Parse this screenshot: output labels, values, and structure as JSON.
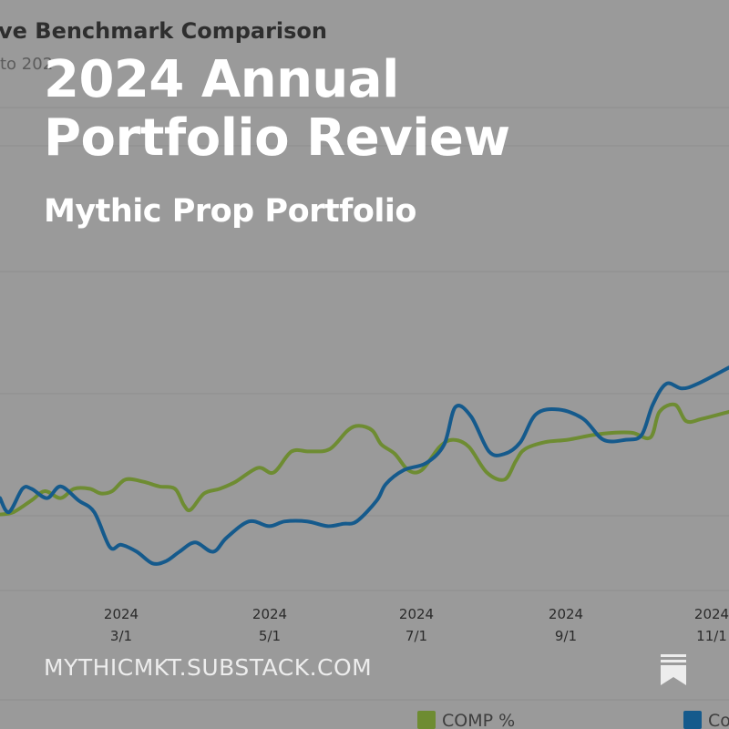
{
  "background_chart": {
    "title": "ve Benchmark Comparison",
    "subtitle": "to 202",
    "colors": {
      "comp": "#6e8c32",
      "benchmark": "#155a8c",
      "grid": "#8e8e8e",
      "tick_text": "#2b2b2b"
    },
    "legend": [
      {
        "label": "COMP %",
        "color": "#6e8c32"
      },
      {
        "label": "Co",
        "color": "#155a8c"
      }
    ]
  },
  "chart_data": {
    "type": "line",
    "title": "ve Benchmark Comparison",
    "subtitle": "to 202",
    "x_ticks": [
      {
        "year": "2024",
        "date": "3/1"
      },
      {
        "year": "2024",
        "date": "5/1"
      },
      {
        "year": "2024",
        "date": "7/1"
      },
      {
        "year": "2024",
        "date": "9/1"
      },
      {
        "year": "2024",
        "date": "11/1"
      }
    ],
    "xlim": [
      "2024-01-16",
      "2024-12-06"
    ],
    "ylim": [
      0,
      100
    ],
    "grid": true,
    "legend_position": "bottom",
    "series": [
      {
        "name": "COMP %",
        "color": "#6e8c32",
        "x": [
          "2024-01-16",
          "2024-01-22",
          "2024-01-30",
          "2024-02-05",
          "2024-02-12",
          "2024-02-18",
          "2024-02-25",
          "2024-03-01",
          "2024-03-06",
          "2024-03-12",
          "2024-03-20",
          "2024-03-27",
          "2024-04-03",
          "2024-04-07",
          "2024-04-10",
          "2024-04-16",
          "2024-04-23",
          "2024-04-30",
          "2024-05-10",
          "2024-05-17",
          "2024-05-25",
          "2024-06-02",
          "2024-06-11",
          "2024-06-19",
          "2024-06-24",
          "2024-06-30",
          "2024-07-04",
          "2024-07-10",
          "2024-07-16",
          "2024-07-22",
          "2024-07-30",
          "2024-08-05",
          "2024-08-12",
          "2024-08-20",
          "2024-08-28",
          "2024-09-02",
          "2024-09-06",
          "2024-09-15",
          "2024-09-25",
          "2024-10-06",
          "2024-10-15",
          "2024-10-24",
          "2024-11-01",
          "2024-11-05",
          "2024-11-12",
          "2024-11-17",
          "2024-11-24",
          "2024-12-06"
        ],
        "y": [
          24,
          25,
          30,
          34,
          31,
          35,
          35,
          33,
          34,
          39,
          38,
          36,
          35,
          28,
          26,
          33,
          35,
          38,
          44,
          42,
          51,
          51,
          52,
          60,
          62,
          60,
          54,
          50,
          43,
          43,
          53,
          56,
          53,
          42,
          39,
          47,
          52,
          55,
          56,
          58,
          59,
          59,
          57,
          68,
          71,
          64,
          65,
          68
        ]
      },
      {
        "name": "Co",
        "color": "#155a8c",
        "x": [
          "2024-01-16",
          "2024-01-20",
          "2024-01-26",
          "2024-01-30",
          "2024-02-06",
          "2024-02-12",
          "2024-02-20",
          "2024-02-27",
          "2024-03-05",
          "2024-03-10",
          "2024-03-17",
          "2024-03-24",
          "2024-03-30",
          "2024-04-05",
          "2024-04-12",
          "2024-04-20",
          "2024-04-26",
          "2024-05-06",
          "2024-05-15",
          "2024-05-22",
          "2024-06-01",
          "2024-06-10",
          "2024-06-17",
          "2024-06-23",
          "2024-07-02",
          "2024-07-06",
          "2024-07-14",
          "2024-07-24",
          "2024-08-01",
          "2024-08-06",
          "2024-08-13",
          "2024-08-21",
          "2024-08-28",
          "2024-09-04",
          "2024-09-11",
          "2024-09-21",
          "2024-10-02",
          "2024-10-11",
          "2024-10-21",
          "2024-10-28",
          "2024-11-02",
          "2024-11-08",
          "2024-11-15",
          "2024-11-22",
          "2024-12-06"
        ],
        "y": [
          31,
          25,
          35,
          35,
          31,
          36,
          30,
          25,
          10,
          11,
          8,
          3,
          4,
          8,
          12,
          8,
          14,
          21,
          19,
          21,
          21,
          19,
          20,
          21,
          30,
          37,
          43,
          46,
          54,
          70,
          66,
          51,
          50,
          55,
          67,
          69,
          65,
          56,
          56,
          58,
          71,
          80,
          78,
          80,
          87
        ]
      }
    ]
  },
  "overlay": {
    "title": "2024 Annual Portfolio Review",
    "subtitle": "Mythic Prop Portfolio",
    "site": "MYTHICMKT.SUBSTACK.COM",
    "bookmark_icon": "bookmark-icon"
  }
}
